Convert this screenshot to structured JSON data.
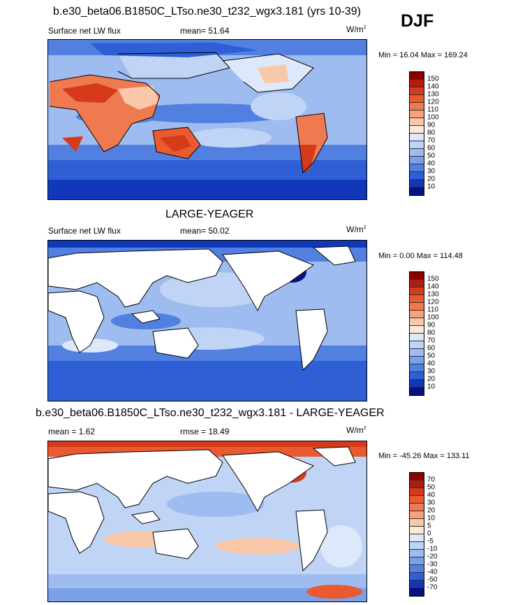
{
  "season": "DJF",
  "panels": [
    {
      "title": "b.e30_beta06.B1850C_LTso.ne30_t232_wgx3.181 (yrs 10-39)",
      "left_label": "Surface net LW flux",
      "mid_label": "mean=  51.64",
      "units": "W/m",
      "units_sup": "2",
      "minmax": "Min =  16.04 Max = 169.24",
      "colorbar_labels": [
        "150",
        "140",
        "130",
        "120",
        "110",
        "100",
        "90",
        "80",
        "70",
        "60",
        "50",
        "40",
        "30",
        "20",
        "10"
      ],
      "colorbar_colors": [
        "#8b0000",
        "#b01c10",
        "#d53a1b",
        "#ea5a30",
        "#f07a50",
        "#f6a27a",
        "#f9c8a8",
        "#fde8d8",
        "#dde8fb",
        "#c0d4f5",
        "#9ebcef",
        "#7aa0e8",
        "#5280e0",
        "#2e5fd4",
        "#1038b8",
        "#07107e"
      ]
    },
    {
      "title": "LARGE-YEAGER",
      "left_label": "Surface net LW flux",
      "mid_label": "mean=  50.02",
      "units": "W/m",
      "units_sup": "2",
      "minmax": "Min =   0.00 Max = 114.48",
      "colorbar_labels": [
        "150",
        "140",
        "130",
        "120",
        "110",
        "100",
        "90",
        "80",
        "70",
        "60",
        "50",
        "40",
        "30",
        "20",
        "10"
      ],
      "colorbar_colors": [
        "#8b0000",
        "#b01c10",
        "#d53a1b",
        "#ea5a30",
        "#f07a50",
        "#f6a27a",
        "#f9c8a8",
        "#fde8d8",
        "#dde8fb",
        "#c0d4f5",
        "#9ebcef",
        "#7aa0e8",
        "#5280e0",
        "#2e5fd4",
        "#1038b8",
        "#07107e"
      ]
    },
    {
      "title": "b.e30_beta06.B1850C_LTso.ne30_t232_wgx3.181 - LARGE-YEAGER",
      "left_label": "mean =   1.62",
      "mid_label": "rmse =  18.49",
      "units": "W/m",
      "units_sup": "2",
      "minmax": "Min = -45.26 Max = 133.11",
      "colorbar_labels": [
        "70",
        "50",
        "40",
        "30",
        "20",
        "10",
        "5",
        "0",
        "-5",
        "-10",
        "-20",
        "-30",
        "-40",
        "-50",
        "-70"
      ],
      "colorbar_colors": [
        "#8b0000",
        "#b01c10",
        "#d53a1b",
        "#ea5a30",
        "#f07a50",
        "#f6a27a",
        "#f9c8a8",
        "#fde8d8",
        "#dde8fb",
        "#c0d4f5",
        "#9ebcef",
        "#7aa0e8",
        "#5280e0",
        "#2e5fd4",
        "#1038b8",
        "#07107e"
      ]
    }
  ],
  "colors": {
    "land": "#ffffff",
    "ocean_high": "#2e5fd4",
    "ocean_mid": "#7aa0e8",
    "ocean_low": "#c0d4f5",
    "warm": "#ea5a30",
    "warm_light": "#f9c8a8",
    "coast": "#000000"
  }
}
